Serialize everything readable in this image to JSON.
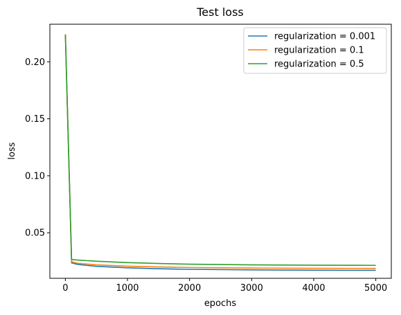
{
  "chart_data": {
    "type": "line",
    "title": "Test loss",
    "xlabel": "epochs",
    "ylabel": "loss",
    "xlim": [
      -250,
      5250
    ],
    "ylim": [
      0.01,
      0.233
    ],
    "xticks": [
      0,
      1000,
      2000,
      3000,
      4000,
      5000
    ],
    "xtick_labels": [
      "0",
      "1000",
      "2000",
      "3000",
      "4000",
      "5000"
    ],
    "yticks": [
      0.05,
      0.1,
      0.15,
      0.2
    ],
    "ytick_labels": [
      "0.05",
      "0.10",
      "0.15",
      "0.20"
    ],
    "grid": false,
    "legend_position": "top-right",
    "x": [
      0,
      100,
      200,
      500,
      1000,
      1500,
      2000,
      3000,
      4000,
      5000
    ],
    "series": [
      {
        "name": "regularization = 0.001",
        "color": "#1f77b4",
        "values": [
          0.224,
          0.0235,
          0.0222,
          0.0205,
          0.0192,
          0.0184,
          0.0179,
          0.0174,
          0.0171,
          0.017
        ]
      },
      {
        "name": "regularization = 0.1",
        "color": "#ff7f0e",
        "values": [
          0.224,
          0.0245,
          0.0232,
          0.0218,
          0.0207,
          0.02,
          0.0195,
          0.019,
          0.0188,
          0.0187
        ]
      },
      {
        "name": "regularization = 0.5",
        "color": "#2ca02c",
        "values": [
          0.224,
          0.0265,
          0.026,
          0.025,
          0.0238,
          0.023,
          0.0224,
          0.0218,
          0.0215,
          0.0214
        ]
      }
    ]
  }
}
